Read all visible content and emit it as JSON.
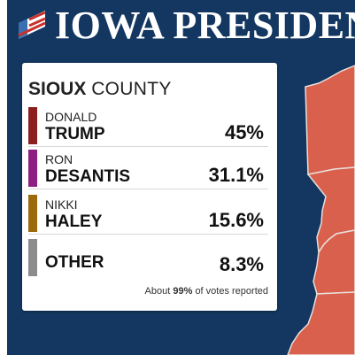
{
  "header": {
    "title": "IOWA PRESIDENT",
    "flag_icon": "striped-flag-icon"
  },
  "card": {
    "county_name": "SIOUX",
    "county_suffix": "COUNTY",
    "candidates": [
      {
        "first": "DONALD",
        "last": "TRUMP",
        "pct": "45%",
        "color": "#8b1e1e"
      },
      {
        "first": "RON",
        "last": "DESANTIS",
        "pct": "31.1%",
        "color": "#8e1f82"
      },
      {
        "first": "NIKKI",
        "last": "HALEY",
        "pct": "15.6%",
        "color": "#9a6a0c"
      },
      {
        "first": "",
        "last": "OTHER",
        "pct": "8.3%",
        "color": "#8c8c8c"
      }
    ],
    "footnote_prefix": "About",
    "footnote_value": "99%",
    "footnote_suffix": "of votes reported"
  },
  "colors": {
    "background": "#133761",
    "map_fill": "#d9604d",
    "map_border": "#e8e0dc"
  }
}
